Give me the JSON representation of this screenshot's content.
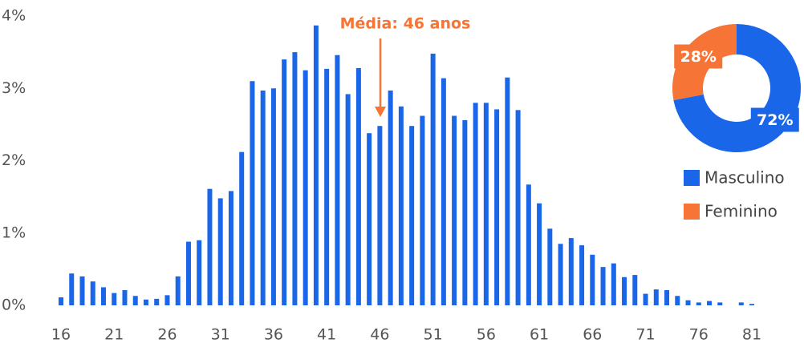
{
  "chart_data": [
    {
      "type": "bar",
      "annotation": "Média: 46 anos",
      "categories": [
        "16",
        null,
        null,
        null,
        null,
        "21",
        null,
        null,
        null,
        null,
        "26",
        null,
        null,
        null,
        null,
        "31",
        null,
        null,
        null,
        null,
        "36",
        null,
        null,
        null,
        null,
        "41",
        null,
        null,
        null,
        null,
        "46",
        null,
        null,
        null,
        null,
        "51",
        null,
        null,
        null,
        null,
        "56",
        null,
        null,
        null,
        null,
        "61",
        null,
        null,
        null,
        null,
        "66",
        null,
        null,
        null,
        null,
        "71",
        null,
        null,
        null,
        null,
        "76",
        null,
        null,
        null,
        null,
        "81"
      ],
      "values": [
        0.11,
        0.44,
        0.4,
        0.33,
        0.25,
        0.17,
        0.21,
        0.13,
        0.08,
        0.09,
        0.14,
        0.4,
        0.88,
        0.9,
        1.61,
        1.48,
        1.58,
        2.12,
        3.1,
        2.97,
        3.0,
        3.4,
        3.5,
        3.25,
        3.87,
        3.27,
        3.46,
        2.92,
        3.28,
        2.38,
        2.48,
        2.97,
        2.75,
        2.48,
        2.62,
        3.48,
        3.14,
        2.62,
        2.56,
        2.8,
        2.8,
        2.71,
        3.15,
        2.7,
        1.67,
        1.41,
        1.06,
        0.85,
        0.93,
        0.83,
        0.7,
        0.53,
        0.58,
        0.39,
        0.42,
        0.16,
        0.22,
        0.21,
        0.13,
        0.07,
        0.04,
        0.06,
        0.04,
        0,
        0.04,
        0.02
      ],
      "color": "#1a66e8",
      "ylim": [
        0,
        4
      ],
      "yticks": [
        {
          "value": 0,
          "label": "0%"
        },
        {
          "value": 1,
          "label": "1%"
        },
        {
          "value": 2,
          "label": "2%"
        },
        {
          "value": 3,
          "label": "3%"
        },
        {
          "value": 4,
          "label": "4%"
        }
      ],
      "grid": false
    },
    {
      "type": "pie",
      "categories": [
        "Masculino",
        "Feminino"
      ],
      "values": [
        72,
        28
      ],
      "value_labels": [
        "72%",
        "28%"
      ],
      "colors": [
        "#1a66e8",
        "#f57436"
      ]
    }
  ]
}
